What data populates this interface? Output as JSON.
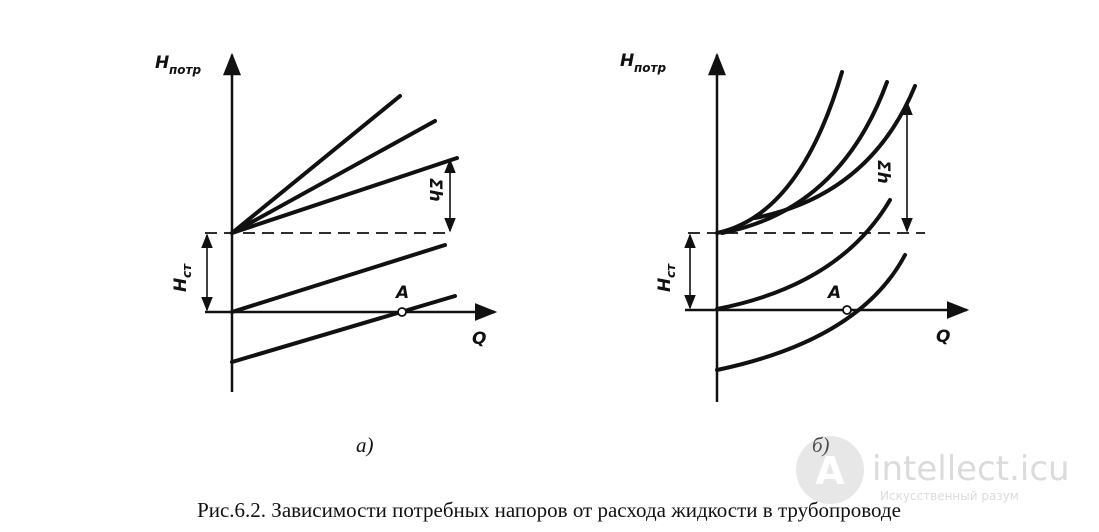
{
  "figure": {
    "panels": [
      {
        "y_axis": {
          "symbol": "H",
          "subscript": "потр"
        },
        "x_axis": "Q",
        "static_head": {
          "symbol": "H",
          "subscript": "ст"
        },
        "losses": "Σh",
        "point": "A",
        "label": "а)"
      },
      {
        "y_axis": {
          "symbol": "H",
          "subscript": "потр"
        },
        "x_axis": "Q",
        "static_head": {
          "symbol": "H",
          "subscript": "ст"
        },
        "losses": "Σh",
        "point": "A",
        "label": "б)"
      }
    ],
    "caption": "Рис.6.2. Зависимости потребных напоров от расхода жидкости в трубопроводе"
  },
  "watermark": {
    "title": "intellect.icu",
    "subtitle": "Искусственный разум"
  }
}
